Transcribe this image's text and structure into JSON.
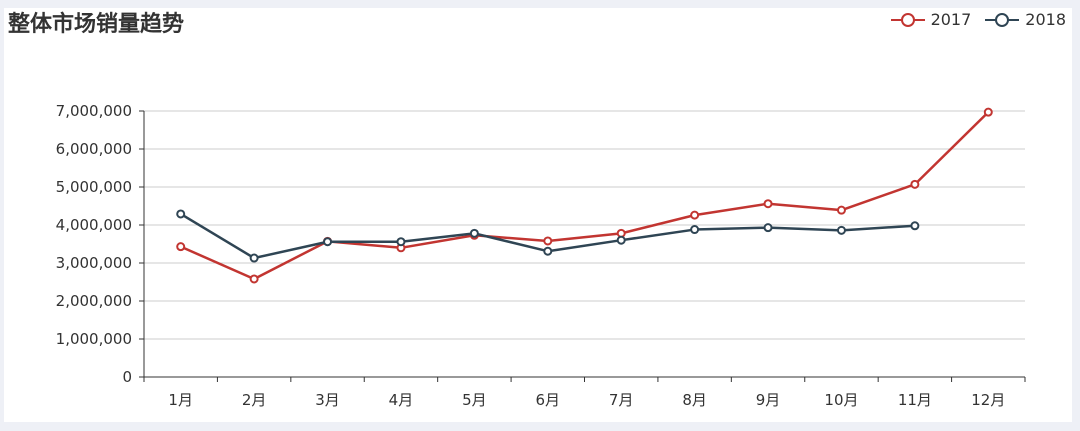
{
  "chart_data": {
    "type": "line",
    "title": "整体市场销量趋势",
    "categories": [
      "1月",
      "2月",
      "3月",
      "4月",
      "5月",
      "6月",
      "7月",
      "8月",
      "9月",
      "10月",
      "11月",
      "12月"
    ],
    "series": [
      {
        "name": "2017",
        "color": "#c23531",
        "values": [
          3430000,
          2580000,
          3570000,
          3400000,
          3730000,
          3580000,
          3780000,
          4260000,
          4560000,
          4390000,
          5070000,
          6970000
        ]
      },
      {
        "name": "2018",
        "color": "#2f4554",
        "values": [
          4290000,
          3130000,
          3560000,
          3560000,
          3780000,
          3310000,
          3600000,
          3880000,
          3930000,
          3860000,
          3980000,
          null
        ]
      }
    ],
    "y_ticks": [
      "0",
      "1,000,000",
      "2,000,000",
      "3,000,000",
      "4,000,000",
      "5,000,000",
      "6,000,000",
      "7,000,000"
    ],
    "ylim": [
      0,
      7000000
    ],
    "grid": true,
    "legend_position": "top-right"
  }
}
